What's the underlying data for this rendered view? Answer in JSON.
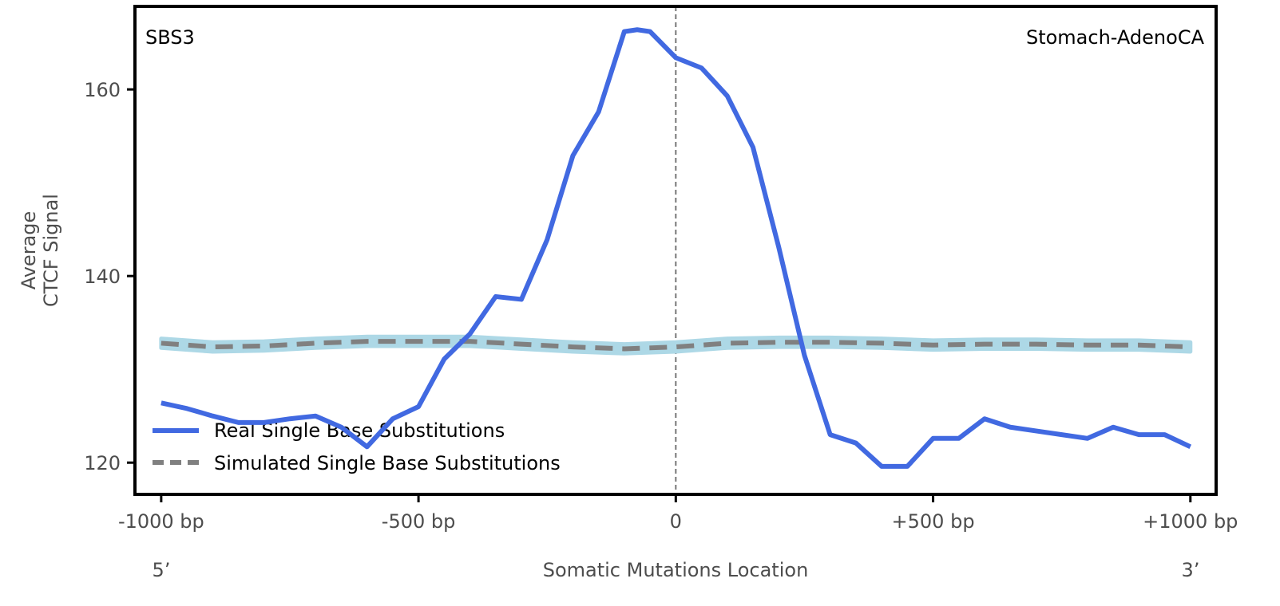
{
  "chart_data": {
    "type": "line",
    "title_left": "SBS3",
    "title_right": "Stomach-AdenoCA",
    "xlabel": "Somatic Mutations Location",
    "ylabel_lines": [
      "Average",
      "CTCF Signal"
    ],
    "x_end_labels": {
      "left": "5’",
      "right": "3’"
    },
    "xlim": [
      -1051,
      1050
    ],
    "ylim": [
      116.6,
      168.9
    ],
    "x_ticks": [
      {
        "value": -1000,
        "label": "-1000 bp"
      },
      {
        "value": -500,
        "label": "-500 bp"
      },
      {
        "value": 0,
        "label": "0"
      },
      {
        "value": 500,
        "label": "+500 bp"
      },
      {
        "value": 1000,
        "label": "+1000 bp"
      }
    ],
    "y_ticks": [
      {
        "value": 120,
        "label": "120"
      },
      {
        "value": 140,
        "label": "140"
      },
      {
        "value": 160,
        "label": "160"
      }
    ],
    "grid": false,
    "vline_at": 0,
    "legend_position": "bottom-left",
    "series": [
      {
        "name": "Real Single Base Substitutions",
        "color": "#4169e1",
        "style": "solid",
        "x": [
          -1000,
          -950,
          -900,
          -850,
          -800,
          -750,
          -700,
          -650,
          -600,
          -550,
          -500,
          -450,
          -400,
          -350,
          -300,
          -250,
          -200,
          -150,
          -100,
          -75,
          -50,
          0,
          50,
          100,
          150,
          200,
          250,
          300,
          350,
          400,
          450,
          500,
          550,
          600,
          650,
          700,
          750,
          800,
          850,
          900,
          950,
          1000
        ],
        "y": [
          126.4,
          125.8,
          125.0,
          124.3,
          124.3,
          124.7,
          125.0,
          123.8,
          121.7,
          124.7,
          126.0,
          131.1,
          133.8,
          137.8,
          137.5,
          143.9,
          152.9,
          157.6,
          166.2,
          166.4,
          166.2,
          163.4,
          162.3,
          159.3,
          153.8,
          143.1,
          131.5,
          123.0,
          122.1,
          119.6,
          119.6,
          122.6,
          122.6,
          124.7,
          123.8,
          123.4,
          123.0,
          122.6,
          123.8,
          123.0,
          123.0,
          121.7
        ]
      },
      {
        "name": "Simulated Single Base Substitutions",
        "color": "#808080",
        "band_color": "#add8e6",
        "style": "dashed",
        "x": [
          -1000,
          -900,
          -800,
          -700,
          -600,
          -500,
          -400,
          -300,
          -200,
          -100,
          0,
          100,
          200,
          300,
          400,
          500,
          600,
          700,
          800,
          900,
          1000
        ],
        "y": [
          132.8,
          132.4,
          132.5,
          132.8,
          133.0,
          133.0,
          133.0,
          132.7,
          132.4,
          132.2,
          132.4,
          132.8,
          132.9,
          132.9,
          132.8,
          132.6,
          132.7,
          132.7,
          132.6,
          132.6,
          132.4
        ],
        "band_halfwidth": 0.5
      }
    ]
  }
}
